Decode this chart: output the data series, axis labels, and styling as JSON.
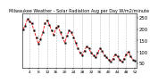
{
  "title": "Milwaukee Weather - Solar Radiation Avg per Day W/m2/minute",
  "y_values": [
    200,
    215,
    245,
    235,
    225,
    195,
    165,
    135,
    155,
    185,
    225,
    240,
    220,
    195,
    175,
    205,
    215,
    185,
    165,
    140,
    170,
    195,
    185,
    165,
    140,
    115,
    95,
    85,
    105,
    125,
    115,
    95,
    85,
    75,
    95,
    115,
    105,
    85,
    75,
    65,
    55,
    70,
    90,
    80,
    65,
    55,
    70,
    90,
    100,
    80,
    65,
    60
  ],
  "line_color": "#FF0000",
  "marker_color": "#000000",
  "bg_color": "#FFFFFF",
  "plot_bg": "#FFFFFF",
  "grid_color": "#BBBBBB",
  "ylim": [
    30,
    270
  ],
  "yticks": [
    50,
    100,
    150,
    200,
    250
  ],
  "ytick_labels": [
    "50",
    "100",
    "150",
    "200",
    "250"
  ],
  "ylabel_fontsize": 3.8,
  "xlabel_fontsize": 3.2,
  "title_fontsize": 3.5,
  "linewidth": 0.6,
  "markersize": 1.2,
  "xtick_every": 4
}
